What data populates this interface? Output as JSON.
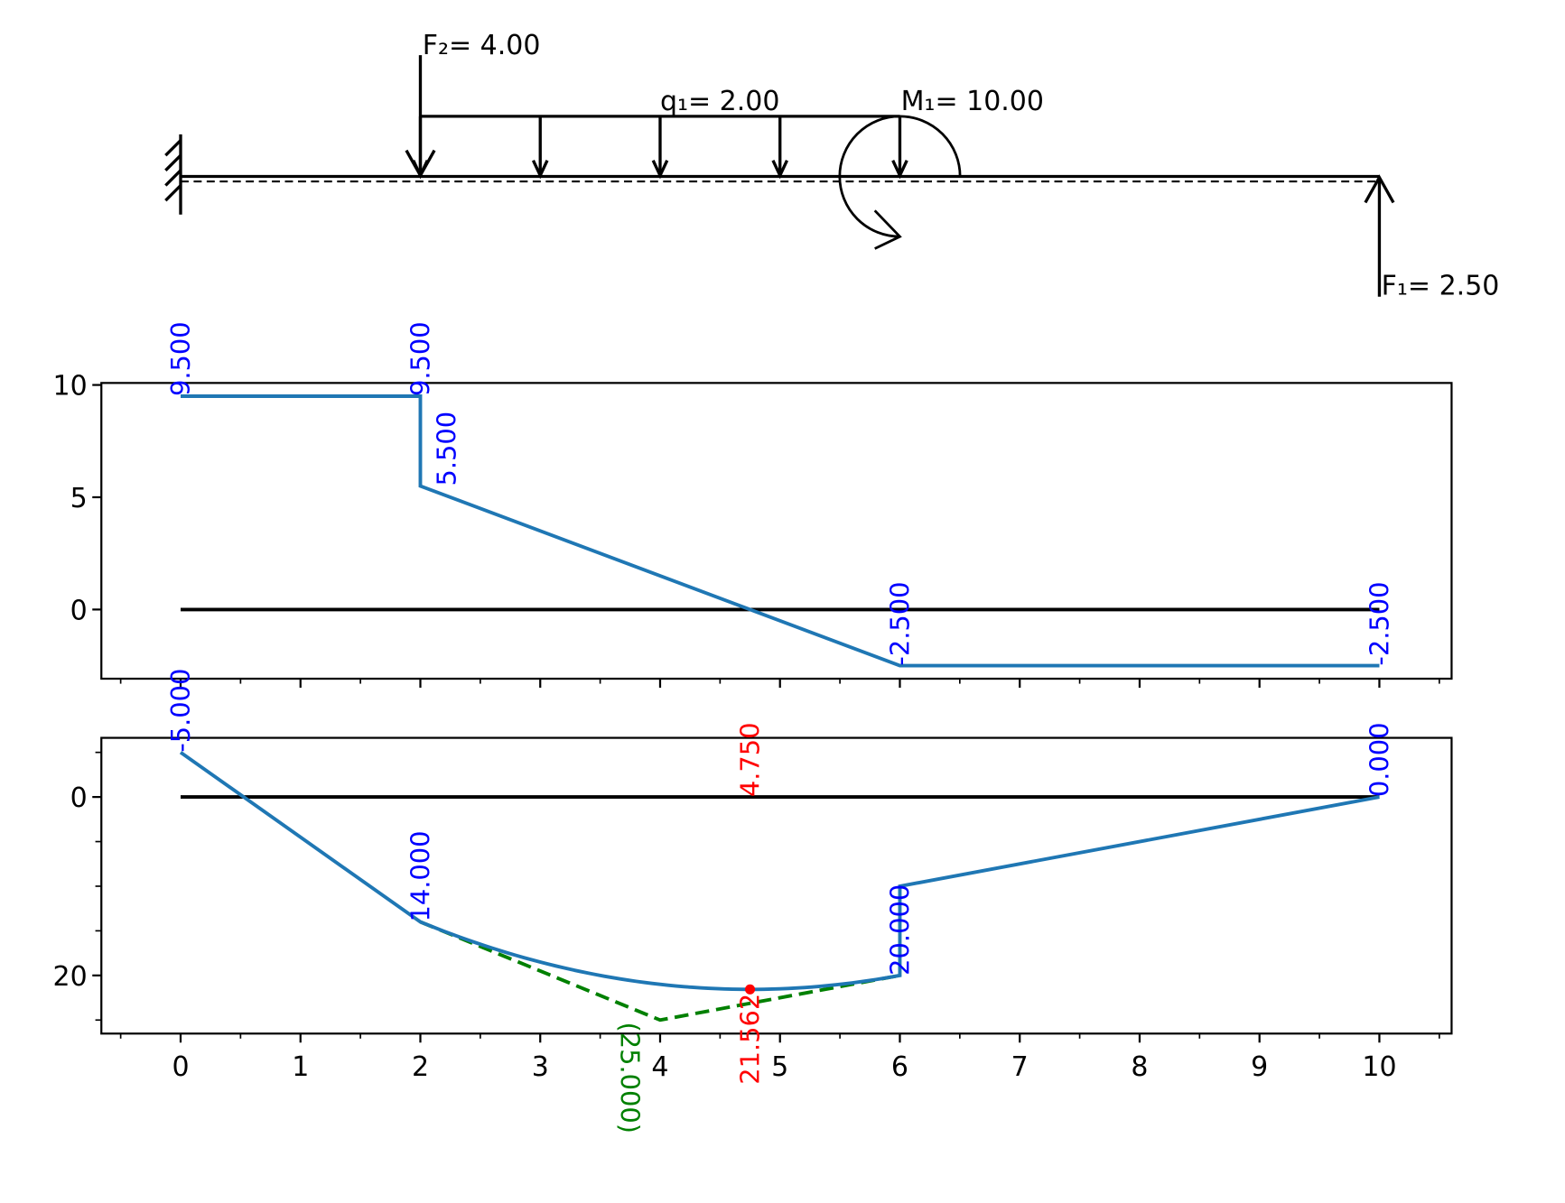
{
  "beam": {
    "length": 10,
    "support": "fixed-wall",
    "support_x": 0,
    "loads": [
      {
        "type": "point",
        "name": "F₂= 4.00",
        "x": 2,
        "direction": "down"
      },
      {
        "type": "distributed",
        "name": "q₁= 2.00",
        "x_start": 2,
        "x_end": 6,
        "direction": "down"
      },
      {
        "type": "moment",
        "name": "M₁= 10.00",
        "x": 6,
        "direction": "clockwise"
      },
      {
        "type": "point",
        "name": "F₁= 2.50",
        "x": 10,
        "direction": "up"
      }
    ]
  },
  "chart_data": [
    {
      "type": "line",
      "title": "",
      "xlabel": "",
      "ylabel": "",
      "xlim": [
        -0.65,
        10.6
      ],
      "ylim": [
        -3.1,
        10.1
      ],
      "yticks": [
        "10",
        "5",
        "0"
      ],
      "ytick_values": [
        10,
        5,
        0
      ],
      "grid": false,
      "series": [
        {
          "color": "#1f77b4",
          "points": [
            [
              0,
              9.5
            ],
            [
              2,
              9.5
            ],
            [
              2,
              5.5
            ],
            [
              6,
              -2.5
            ],
            [
              10,
              -2.5
            ]
          ]
        }
      ],
      "baseline": {
        "y": 0,
        "x_range": [
          0,
          10
        ],
        "color": "#000000"
      },
      "labels": [
        {
          "text": "9.500",
          "x": 0,
          "y": 9.5,
          "color": "#0000ff"
        },
        {
          "text": "9.500",
          "x": 2,
          "y": 9.5,
          "color": "#0000ff"
        },
        {
          "text": "5.500",
          "x": 2,
          "y": 5.5,
          "color": "#0000ff"
        },
        {
          "text": "-2.500",
          "x": 6,
          "y": -2.5,
          "color": "#0000ff"
        },
        {
          "text": "-2.500",
          "x": 10,
          "y": -2.5,
          "color": "#0000ff"
        }
      ]
    },
    {
      "type": "line",
      "title": "",
      "xlabel": "",
      "ylabel": "",
      "xlim": [
        -0.65,
        10.6
      ],
      "ylim": [
        26.5,
        -6.6
      ],
      "y_inverted": true,
      "yticks": [
        "0",
        "20"
      ],
      "ytick_values": [
        0,
        20
      ],
      "xticks": [
        "0",
        "1",
        "2",
        "3",
        "4",
        "5",
        "6",
        "7",
        "8",
        "9",
        "10"
      ],
      "xtick_values": [
        0,
        1,
        2,
        3,
        4,
        5,
        6,
        7,
        8,
        9,
        10
      ],
      "grid": false,
      "series": [
        {
          "color": "#1f77b4",
          "segments": [
            {
              "kind": "linear",
              "points": [
                [
                  0,
                  -5
                ],
                [
                  2,
                  14
                ]
              ]
            },
            {
              "kind": "parabola",
              "points": [
                [
                  2,
                  14
                ],
                [
                  4.75,
                  21.5625
                ],
                [
                  6,
                  20
                ]
              ]
            },
            {
              "kind": "linear",
              "points": [
                [
                  6,
                  20
                ],
                [
                  6,
                  10
                ],
                [
                  10,
                  0
                ]
              ]
            }
          ]
        },
        {
          "color": "#008000",
          "style": "dashed",
          "points": [
            [
              2,
              14
            ],
            [
              4,
              25
            ],
            [
              6,
              20
            ]
          ]
        }
      ],
      "baseline": {
        "y": 0,
        "x_range": [
          0,
          10
        ],
        "color": "#000000"
      },
      "extremum": {
        "x": 4.75,
        "y": 21.562,
        "color": "#ff0000"
      },
      "labels": [
        {
          "text": "-5.000",
          "x": 0,
          "y": -5,
          "color": "#0000ff",
          "pos": "above"
        },
        {
          "text": "14.000",
          "x": 2,
          "y": 14,
          "color": "#0000ff",
          "pos": "above"
        },
        {
          "text": "20.000",
          "x": 6,
          "y": 20,
          "color": "#0000ff",
          "pos": "above"
        },
        {
          "text": "0.000",
          "x": 10,
          "y": 0,
          "color": "#0000ff",
          "pos": "above"
        },
        {
          "text": "4.750",
          "x": 4.75,
          "y": 0,
          "color": "#ff0000",
          "pos": "above"
        },
        {
          "text": "21.562",
          "x": 4.75,
          "y": 21.562,
          "color": "#ff0000",
          "pos": "below"
        },
        {
          "text": "(25.000)",
          "x": 4,
          "y": 25,
          "color": "#008000",
          "pos": "below-flipped"
        }
      ]
    }
  ]
}
